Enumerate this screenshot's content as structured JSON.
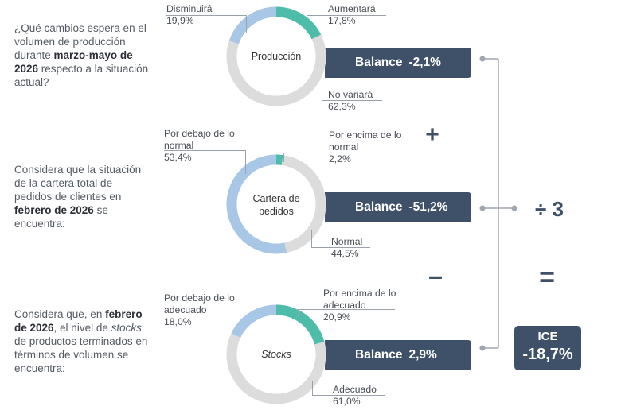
{
  "colors": {
    "increase": "#4dbdaa",
    "decrease": "#a8c6e6",
    "neutral": "#dcdcdc",
    "balance_box": "#3f5168",
    "operator": "#3f5168"
  },
  "questions": {
    "q1": {
      "p1": "¿Qué cambios espera en el volumen de producción durante ",
      "b1": "marzo-mayo de 2026",
      "p2": " respecto a la situación actual?"
    },
    "q2": {
      "p1": "Considera que la situación de la cartera total de pedidos de clientes en ",
      "b1": "febrero de 2026",
      "p2": " se encuentra:"
    },
    "q3": {
      "p1": "Considera que, en ",
      "b1": "febrero de 2026",
      "p2": ", el nivel de ",
      "i1": "stocks",
      "p3": " de productos terminados en términos de volumen se encuentra:"
    }
  },
  "balances": {
    "produccion": {
      "label": "Balance",
      "value": "-2,1%"
    },
    "cartera": {
      "label": "Balance",
      "value": "-51,2%"
    },
    "stocks": {
      "label": "Balance",
      "value": "2,9%"
    }
  },
  "operators": {
    "plus": "+",
    "minus": "–",
    "divide": "÷ 3",
    "equals": "="
  },
  "ice": {
    "title": "ICE",
    "value": "-18,7%"
  },
  "chart_data": [
    {
      "type": "pie",
      "title": "Producción",
      "slices": [
        {
          "label": "Aumentará",
          "value": 17.8,
          "display": "17,8%"
        },
        {
          "label": "No variará",
          "value": 62.3,
          "display": "62,3%"
        },
        {
          "label": "Disminuirá",
          "value": 19.9,
          "display": "19,9%"
        }
      ]
    },
    {
      "type": "pie",
      "title": "Cartera de pedidos",
      "slices": [
        {
          "label": "Por encima de lo normal",
          "value": 2.2,
          "display": "2,2%"
        },
        {
          "label": "Normal",
          "value": 44.5,
          "display": "44,5%"
        },
        {
          "label": "Por debajo de lo normal",
          "value": 53.4,
          "display": "53,4%"
        }
      ]
    },
    {
      "type": "pie",
      "title": "Stocks",
      "slices": [
        {
          "label": "Por encima de lo adecuado",
          "value": 20.9,
          "display": "20,9%"
        },
        {
          "label": "Adecuado",
          "value": 61.0,
          "display": "61,0%"
        },
        {
          "label": "Por debajo de lo adecuado",
          "value": 18.0,
          "display": "18,0%"
        }
      ]
    }
  ]
}
